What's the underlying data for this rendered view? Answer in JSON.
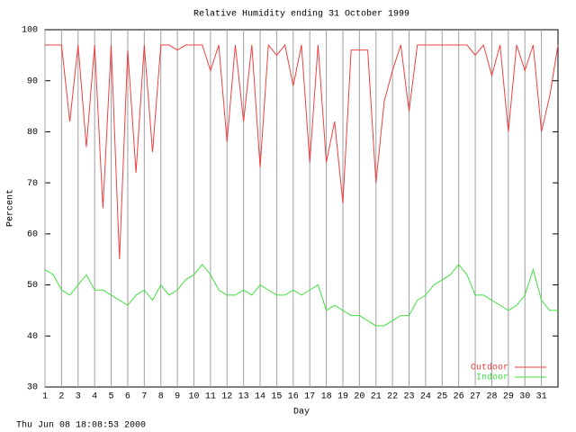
{
  "chart_data": {
    "type": "line",
    "title": "Relative Humidity ending 31 October 1999",
    "x_label": "Day",
    "y_label": "Percent",
    "timestamp": "Thu Jun 08 18:08:53 2000",
    "x": [
      1,
      1.5,
      2,
      2.5,
      3,
      3.5,
      4,
      4.5,
      5,
      5.5,
      6,
      6.5,
      7,
      7.5,
      8,
      8.5,
      9,
      9.5,
      10,
      10.5,
      11,
      11.5,
      12,
      12.5,
      13,
      13.5,
      14,
      14.5,
      15,
      15.5,
      16,
      16.5,
      17,
      17.5,
      18,
      18.5,
      19,
      19.5,
      20,
      20.5,
      21,
      21.5,
      22,
      22.5,
      23,
      23.5,
      24,
      24.5,
      25,
      25.5,
      26,
      26.5,
      27,
      27.5,
      28,
      28.5,
      29,
      29.5,
      30,
      30.5,
      31,
      31.5,
      32
    ],
    "series": [
      {
        "name": "Outdoor",
        "color": "#f04040",
        "values": [
          97,
          97,
          97,
          82,
          97,
          77,
          97,
          65,
          97,
          55,
          96,
          72,
          97,
          76,
          97,
          97,
          96,
          97,
          97,
          97,
          92,
          97,
          78,
          97,
          82,
          97,
          73,
          97,
          95,
          97,
          89,
          97,
          74,
          97,
          74,
          82,
          66,
          96,
          96,
          96,
          70,
          86,
          92,
          97,
          84,
          97,
          97,
          97,
          97,
          97,
          97,
          97,
          95,
          97,
          91,
          97,
          80,
          97,
          92,
          97,
          80,
          87,
          97
        ]
      },
      {
        "name": "Indoor",
        "color": "#40e040",
        "values": [
          53,
          52,
          49,
          48,
          50,
          52,
          49,
          49,
          48,
          47,
          46,
          48,
          49,
          47,
          50,
          48,
          49,
          51,
          52,
          54,
          52,
          49,
          48,
          48,
          49,
          48,
          50,
          49,
          48,
          48,
          49,
          48,
          49,
          50,
          45,
          46,
          45,
          44,
          44,
          43,
          42,
          42,
          43,
          44,
          44,
          47,
          48,
          50,
          51,
          52,
          54,
          52,
          48,
          48,
          47,
          46,
          45,
          46,
          48,
          53,
          47,
          45,
          45
        ]
      }
    ],
    "xlim": [
      1,
      32
    ],
    "xticks": [
      1,
      2,
      3,
      4,
      5,
      6,
      7,
      8,
      9,
      10,
      11,
      12,
      13,
      14,
      15,
      16,
      17,
      18,
      19,
      20,
      21,
      22,
      23,
      24,
      25,
      26,
      27,
      28,
      29,
      30,
      31
    ],
    "ylim": [
      30,
      100
    ],
    "yticks": [
      30,
      40,
      50,
      60,
      70,
      80,
      90,
      100
    ],
    "grid": "x",
    "legend": "bottom-right"
  }
}
